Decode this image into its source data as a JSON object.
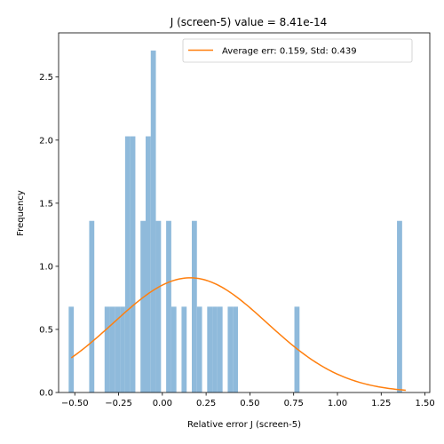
{
  "chart_data": {
    "type": "bar",
    "title": "J (screen-5) value = 8.41e-14",
    "xlabel": "Relative error J (screen-5)",
    "ylabel": "Frequency",
    "xlim": [
      -0.5925,
      1.5275
    ],
    "ylim": [
      0,
      2.85
    ],
    "xticks": [
      -0.5,
      -0.25,
      0.0,
      0.25,
      0.5,
      0.75,
      1.0,
      1.25,
      1.5
    ],
    "xtick_labels": [
      "−0.50",
      "−0.25",
      "0.00",
      "0.25",
      "0.50",
      "0.75",
      "1.00",
      "1.25",
      "1.50"
    ],
    "yticks": [
      0.0,
      0.5,
      1.0,
      1.5,
      2.0,
      2.5
    ],
    "ytick_labels": [
      "0.0",
      "0.5",
      "1.0",
      "1.5",
      "2.0",
      "2.5"
    ],
    "grid": false,
    "legend_position": "top-right",
    "hist": {
      "name": "",
      "bin_start": -0.535,
      "bin_width": 0.0293,
      "color": "#8fbadb",
      "values": [
        0.68,
        0,
        0,
        0,
        1.36,
        0,
        0,
        0.68,
        0.68,
        0.68,
        0.68,
        2.03,
        2.03,
        0,
        1.36,
        2.03,
        2.71,
        1.36,
        0,
        1.36,
        0.68,
        0,
        0.68,
        0,
        1.36,
        0.68,
        0,
        0.68,
        0.68,
        0.68,
        0,
        0.68,
        0.68,
        0,
        0,
        0,
        0,
        0,
        0,
        0,
        0,
        0,
        0,
        0,
        0.68,
        0,
        0,
        0,
        0,
        0,
        0,
        0,
        0,
        0,
        0,
        0,
        0,
        0,
        0,
        0,
        0,
        0,
        0,
        0,
        1.36
      ]
    },
    "curve": {
      "name": "Average err: 0.159, Std: 0.439",
      "mean": 0.159,
      "std": 0.439,
      "x_range": [
        -0.52,
        1.39
      ],
      "color": "#ff7f0e"
    }
  }
}
